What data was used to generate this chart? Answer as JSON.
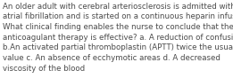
{
  "text": "An older adult with cerebral arteriosclerosis is admitted with\natrial fibrillation and is started on a continuous heparin infusion.\nWhat clinical finding enables the nurse to conclude that the\nanticoagulant therapy is effective? a. A reduction of confusion\nb.An activated partial thromboplastin (APTT) twice the usual\nvalue c. An absence of ecchymotic areas d. A decreased\nviscosity of the blood",
  "font_size": 6.2,
  "font_color": "#4a4a4a",
  "background_color": "#ffffff",
  "fig_width": 2.61,
  "fig_height": 0.88,
  "dpi": 100
}
